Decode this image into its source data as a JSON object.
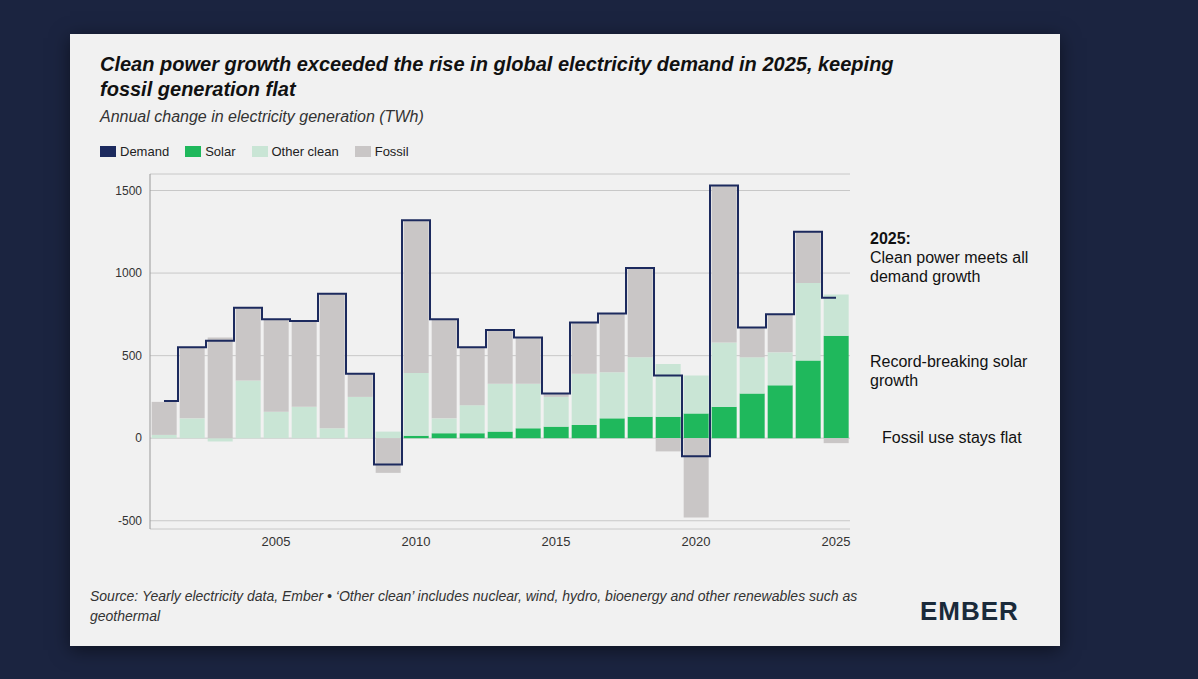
{
  "chart_data": {
    "type": "bar",
    "title": "Clean power growth exceeded the rise in global electricity demand in 2025, keeping fossil generation flat",
    "subtitle": "Annual change in electricity generation (TWh)",
    "categories": [
      null,
      null,
      null,
      null,
      "2005",
      null,
      null,
      null,
      null,
      "2010",
      null,
      null,
      null,
      null,
      "2015",
      null,
      null,
      null,
      null,
      "2020",
      null,
      null,
      null,
      null,
      "2025"
    ],
    "series": [
      {
        "name": "Demand",
        "type": "line",
        "color": "#1c2a5e",
        "values": [
          225,
          550,
          590,
          790,
          720,
          710,
          875,
          390,
          -160,
          1320,
          720,
          550,
          655,
          610,
          270,
          700,
          755,
          1030,
          380,
          -110,
          1530,
          670,
          750,
          1250,
          850
        ]
      },
      {
        "name": "Solar",
        "type": "bar",
        "color": "#1fb85c",
        "values": [
          0,
          0,
          0,
          0,
          0,
          0,
          0,
          0,
          0,
          15,
          30,
          30,
          40,
          60,
          70,
          80,
          120,
          130,
          130,
          150,
          190,
          270,
          320,
          470,
          620
        ]
      },
      {
        "name": "Other clean",
        "type": "bar",
        "color": "#c9e5d5",
        "values": [
          20,
          120,
          -20,
          350,
          160,
          190,
          60,
          250,
          40,
          380,
          90,
          170,
          290,
          270,
          180,
          310,
          280,
          360,
          320,
          230,
          390,
          220,
          200,
          470,
          250
        ]
      },
      {
        "name": "Fossil",
        "type": "bar",
        "color": "#c9c6c6",
        "values": [
          200,
          430,
          610,
          440,
          560,
          520,
          815,
          140,
          -210,
          925,
          600,
          350,
          325,
          280,
          20,
          310,
          355,
          540,
          -80,
          -480,
          950,
          180,
          230,
          310,
          -30
        ]
      }
    ],
    "stacked": true,
    "ylim": [
      -550,
      1600
    ],
    "yticks": [
      -500,
      0,
      500,
      1000,
      1500
    ],
    "grid": true,
    "legend": "top",
    "annotations": [
      "2025:",
      "Clean power meets all demand growth",
      "Record-breaking solar growth",
      "Fossil use stays flat"
    ],
    "source": "Source: Yearly electricity data, Ember • ‘Other clean’ includes nuclear, wind, hydro, bioenergy and other renewables such as geothermal",
    "brand": "EMBER"
  }
}
